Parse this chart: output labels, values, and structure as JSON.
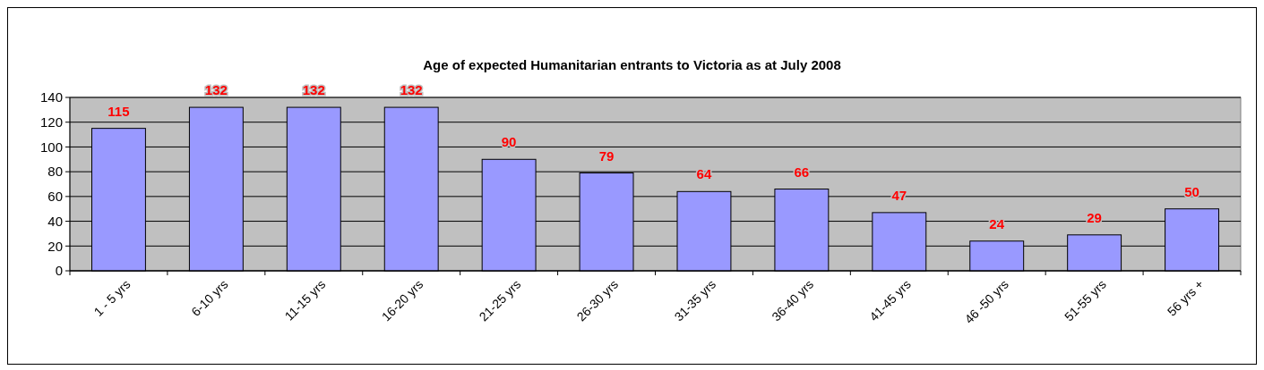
{
  "chart_data": {
    "type": "bar",
    "title": "Age of expected Humanitarian entrants to Victoria as at July 2008",
    "categories": [
      "1 - 5 yrs",
      "6-10 yrs",
      "11-15 yrs",
      "16-20 yrs",
      "21-25 yrs",
      "26-30 yrs",
      "31-35 yrs",
      "36-40 yrs",
      "41-45 yrs",
      "46 -50 yrs",
      "51-55 yrs",
      "56 yrs +"
    ],
    "values": [
      115,
      132,
      132,
      132,
      90,
      79,
      64,
      66,
      47,
      24,
      29,
      50
    ],
    "color": "#9999ff",
    "ylim": [
      0,
      140
    ],
    "yticks": [
      0,
      20,
      40,
      60,
      80,
      100,
      120,
      140
    ],
    "grid": "y",
    "data_labels": true
  }
}
